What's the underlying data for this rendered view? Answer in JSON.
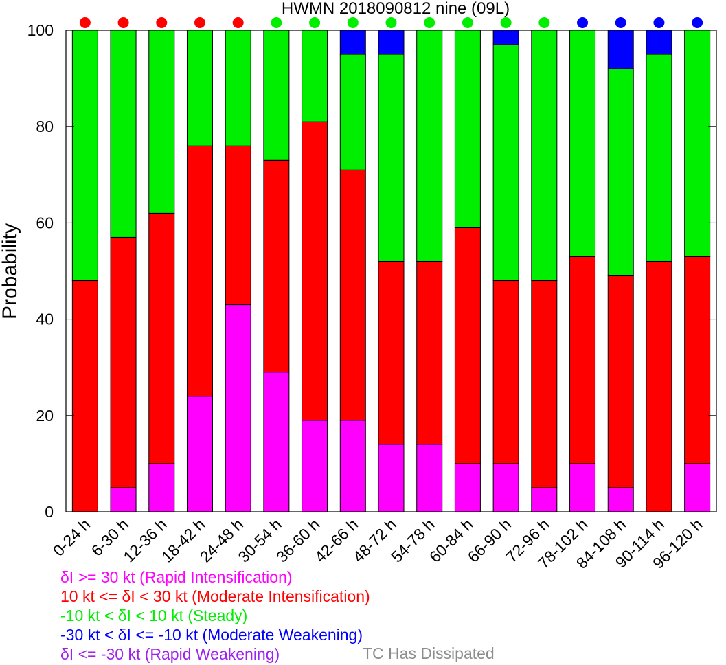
{
  "chart_data": {
    "type": "bar",
    "stacked": true,
    "title": "HWMN 2018090812 nine (09L)",
    "ylabel": "Probability",
    "xlabel": "",
    "ylim": [
      0,
      100
    ],
    "yticks": [
      0,
      20,
      40,
      60,
      80,
      100
    ],
    "categories": [
      "0-24 h",
      "6-30 h",
      "12-36 h",
      "18-42 h",
      "24-48 h",
      "30-54 h",
      "36-60 h",
      "42-66 h",
      "48-72 h",
      "54-78 h",
      "60-84 h",
      "66-90 h",
      "72-96 h",
      "78-102 h",
      "84-108 h",
      "90-114 h",
      "96-120 h"
    ],
    "series": [
      {
        "name": "δI >= 30 kt (Rapid Intensification)",
        "color": "#ff00ff",
        "values": [
          0,
          5,
          10,
          24,
          43,
          29,
          19,
          19,
          14,
          14,
          10,
          10,
          5,
          10,
          5,
          0,
          10
        ]
      },
      {
        "name": "10 kt <= δI < 30 kt (Moderate Intensification)",
        "color": "#ff0000",
        "values": [
          48,
          52,
          52,
          52,
          33,
          44,
          62,
          52,
          38,
          38,
          49,
          38,
          43,
          43,
          44,
          52,
          43
        ]
      },
      {
        "name": "-10 kt < δI < 10 kt (Steady)",
        "color": "#00ee00",
        "values": [
          52,
          43,
          38,
          24,
          24,
          27,
          19,
          24,
          43,
          48,
          41,
          49,
          52,
          47,
          43,
          43,
          47
        ]
      },
      {
        "name": "-30 kt < δI <= -10 kt (Moderate Weakening)",
        "color": "#0000ff",
        "values": [
          0,
          0,
          0,
          0,
          0,
          0,
          0,
          5,
          5,
          0,
          0,
          3,
          0,
          0,
          8,
          5,
          0
        ]
      },
      {
        "name": "δI <= -30 kt (Rapid Weakening)",
        "color": "#a020f0",
        "values": [
          0,
          0,
          0,
          0,
          0,
          0,
          0,
          0,
          0,
          0,
          0,
          0,
          0,
          0,
          0,
          0,
          0
        ]
      }
    ],
    "markers": [
      "#ff0000",
      "#ff0000",
      "#ff0000",
      "#ff0000",
      "#ff0000",
      "#00ee00",
      "#00ee00",
      "#00ee00",
      "#00ee00",
      "#00ee00",
      "#00ee00",
      "#00ee00",
      "#00ee00",
      "#0000ff",
      "#0000ff",
      "#0000ff",
      "#0000ff"
    ],
    "legend_extra": {
      "text": "TC Has Dissipated",
      "color": "#8c8c8c"
    },
    "grid": false,
    "legend_position": "bottom-left"
  }
}
